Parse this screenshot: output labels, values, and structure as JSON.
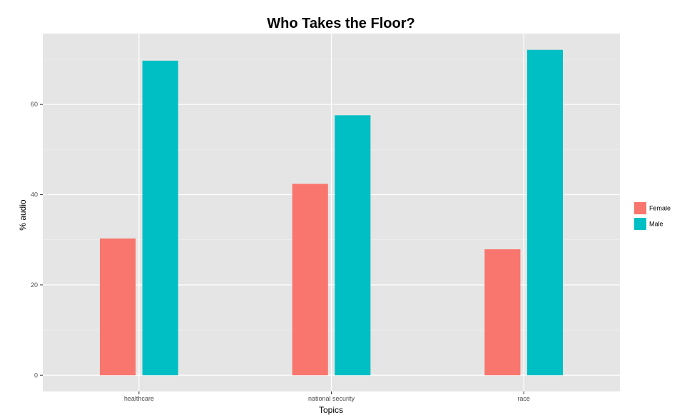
{
  "chart_data": {
    "type": "bar",
    "title": "Who Takes the Floor?",
    "xlabel": "Topics",
    "ylabel": "% audio",
    "categories": [
      "healthcare",
      "national security",
      "race"
    ],
    "series": [
      {
        "name": "Female",
        "color": "#f8766d",
        "values": [
          30.3,
          42.4,
          27.9
        ]
      },
      {
        "name": "Male",
        "color": "#00bfc4",
        "values": [
          69.7,
          57.6,
          72.1
        ]
      }
    ],
    "ylim": [
      -3.6,
      75.7
    ],
    "yticks": [
      0,
      20,
      40,
      60
    ],
    "grid": true,
    "panel_background": "#e5e5e5",
    "legend_position": "right"
  }
}
